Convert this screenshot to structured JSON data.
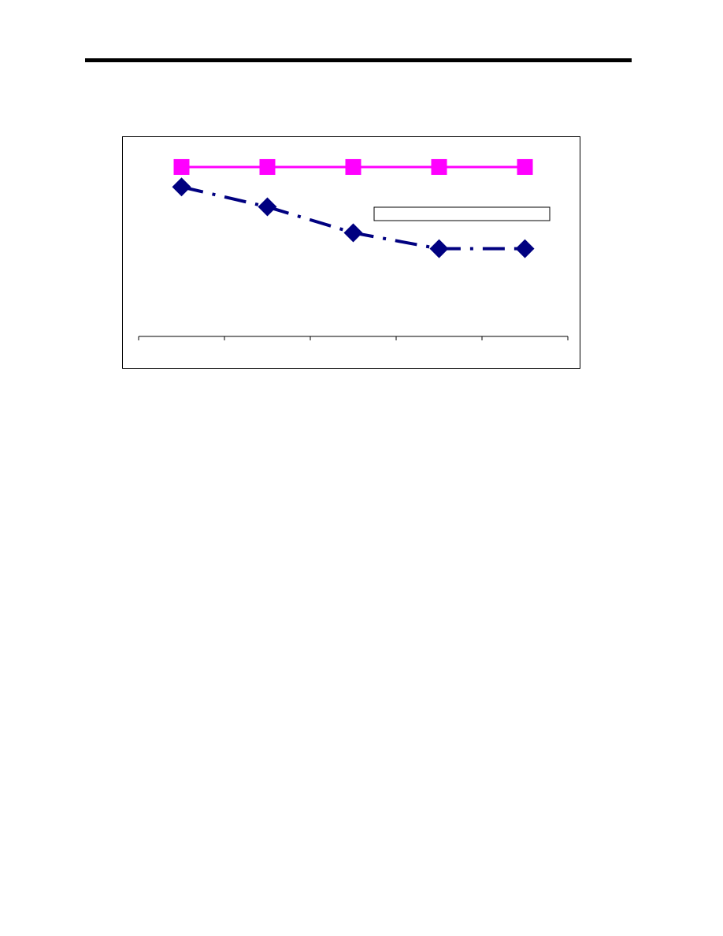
{
  "chart_data": {
    "type": "line",
    "title": "",
    "xlabel": "",
    "ylabel": "",
    "categories": [
      "",
      "",
      "",
      "",
      ""
    ],
    "ylim": [
      0,
      100
    ],
    "grid": false,
    "legend": {
      "placement": "top-right",
      "entries": []
    },
    "series": [
      {
        "values": [
          85,
          85,
          85,
          85,
          85
        ],
        "color": "#ff00ff",
        "marker": "square",
        "line_style": "solid"
      },
      {
        "values": [
          75,
          65,
          52,
          44,
          44
        ],
        "color": "#000080",
        "marker": "diamond",
        "line_style": "dash-dot"
      }
    ]
  }
}
